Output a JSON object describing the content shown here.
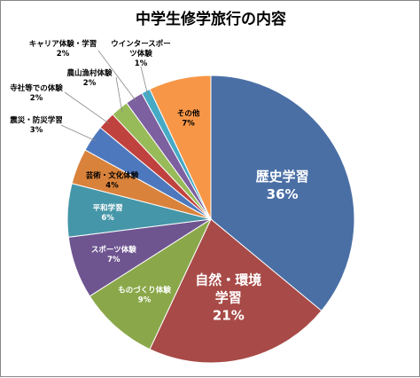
{
  "chart_data": {
    "type": "pie",
    "title": "中学生修学旅行の内容",
    "slices": [
      {
        "name": "歴史学習",
        "value": 36,
        "label": "36%",
        "color": "#4a6fa5",
        "text_color": "#ffffff"
      },
      {
        "name": "自然・環境学習",
        "name_lines": [
          "自然・環境",
          "学習"
        ],
        "value": 21,
        "label": "21%",
        "color": "#a84a47",
        "text_color": "#ffffff"
      },
      {
        "name": "ものづくり体験",
        "value": 9,
        "label": "9%",
        "color": "#8aa84a",
        "text_color": "#ffffff"
      },
      {
        "name": "スポーツ体験",
        "value": 7,
        "label": "7%",
        "color": "#6e5590",
        "text_color": "#ffffff"
      },
      {
        "name": "平和学習",
        "value": 6,
        "label": "6%",
        "color": "#4596a8",
        "text_color": "#ffffff"
      },
      {
        "name": "芸術・文化体験",
        "value": 4,
        "label": "4%",
        "color": "#d9823b",
        "text_color": "#000000"
      },
      {
        "name": "震災・防災学習",
        "value": 3,
        "label": "3%",
        "color": "#4e78bd",
        "text_color": "#000000"
      },
      {
        "name": "寺社等での体験",
        "value": 2,
        "label": "2%",
        "color": "#c0423e",
        "text_color": "#000000"
      },
      {
        "name": "農山漁村体験",
        "value": 2,
        "label": "2%",
        "color": "#98bb59",
        "text_color": "#000000"
      },
      {
        "name": "キャリア体験・学習",
        "value": 2,
        "label": "2%",
        "color": "#7d60a0",
        "text_color": "#000000"
      },
      {
        "name": "ウインタースポーツ体験",
        "name_lines": [
          "ウインタースポー",
          "ツ体験"
        ],
        "value": 1,
        "label": "1%",
        "color": "#46aac5",
        "text_color": "#000000"
      },
      {
        "name": "その他",
        "value": 7,
        "label": "7%",
        "color": "#f79646",
        "text_color": "#000000"
      }
    ],
    "start_angle": 0,
    "direction": "clockwise",
    "legend": "none"
  }
}
